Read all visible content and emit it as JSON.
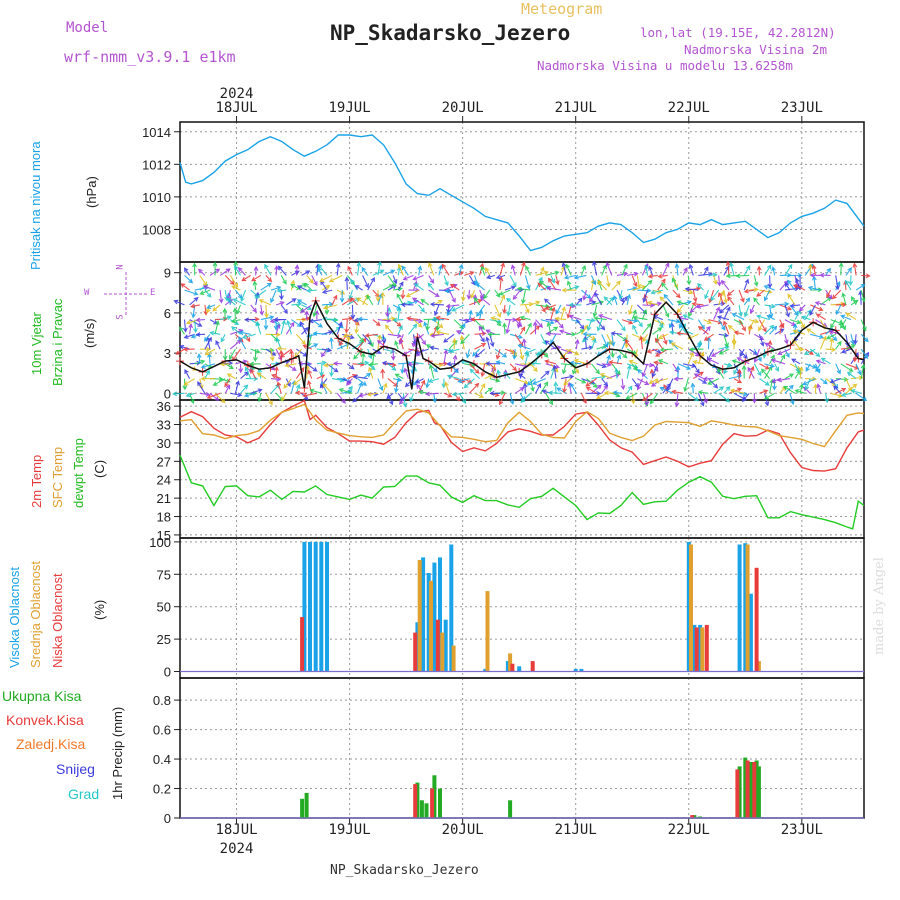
{
  "header": {
    "model_label": "Model",
    "model_name": "wrf-nmm_v3.9.1 e1km",
    "meteogram": "Meteogram",
    "station": "NP_Skadarsko_Jezero",
    "lonlat": "lon,lat (19.15E, 42.2812N)",
    "elev": "Nadmorska Visina 2m",
    "elev_model": "Nadmorska Visina u modelu 13.6258m",
    "footer": "NP_Skadarsko_Jezero",
    "watermark": "made by Angel"
  },
  "panels": {
    "pressure": {
      "ylabel1": "Pritisak na nivou mora",
      "unit": "(hPa)"
    },
    "wind": {
      "ylabel1": "10m Vjetar",
      "ylabel2": "Brzina i Pravac",
      "unit": "(m/s)",
      "dir_n": "N",
      "dir_s": "S",
      "dir_w": "W",
      "dir_e": "E"
    },
    "temp": {
      "ylabel1": "2m Temp",
      "ylabel2": "SFC Temp",
      "ylabel3": "dewpt Temp",
      "unit": "(C)"
    },
    "cloud": {
      "ylabel1": "Visoka Oblacnost",
      "ylabel2": "Srednja Oblacnost",
      "ylabel3": "Niska Oblacnost",
      "unit": "(%)"
    },
    "precip": {
      "unit": "1hr Precip (mm)",
      "legend": [
        "Ukupna Kisa",
        "Konvek.Kisa",
        "Zaledj.Kisa",
        "Snijeg",
        "Grad"
      ]
    }
  },
  "colors": {
    "pressure": "#1aa3e8",
    "temp2m": "#e83c3c",
    "sfc": "#e0a030",
    "dewpt": "#22cc22",
    "cloud_high": "#1aa3e8",
    "cloud_mid": "#e0a030",
    "cloud_low": "#e83c3c",
    "total": "#22aa22",
    "conv": "#e83c3c",
    "frz": "#f07a2a",
    "snow": "#3b3be0",
    "hail": "#22c7c7",
    "title": "#222222",
    "label_purple": "#b455d0",
    "meteogram": "#e8c060"
  },
  "chart_data": [
    {
      "type": "line",
      "panel": "pressure",
      "x_unit": "day of July 2024 (UTC)",
      "year": "2024",
      "day_labels": [
        "18JUL",
        "19JUL",
        "20JUL",
        "21JUL",
        "22JUL",
        "23JUL"
      ],
      "day_values": [
        18,
        19,
        20,
        21,
        22,
        23
      ],
      "xlim": [
        17.5,
        23.55
      ],
      "ylim": [
        1006,
        1014.6
      ],
      "yticks": [
        1008,
        1010,
        1012,
        1014
      ],
      "series": [
        {
          "key": "pressure",
          "x": [
            17.5,
            17.55,
            17.6,
            17.7,
            17.8,
            17.9,
            18.0,
            18.1,
            18.2,
            18.3,
            18.4,
            18.5,
            18.6,
            18.7,
            18.8,
            18.9,
            19.0,
            19.1,
            19.2,
            19.3,
            19.4,
            19.5,
            19.6,
            19.7,
            19.8,
            19.9,
            20.0,
            20.1,
            20.2,
            20.3,
            20.4,
            20.5,
            20.6,
            20.7,
            20.8,
            20.9,
            21.0,
            21.1,
            21.2,
            21.3,
            21.4,
            21.5,
            21.6,
            21.7,
            21.8,
            21.9,
            22.0,
            22.1,
            22.2,
            22.3,
            22.4,
            22.5,
            22.6,
            22.7,
            22.8,
            22.9,
            23.0,
            23.1,
            23.2,
            23.3,
            23.4,
            23.55
          ],
          "values": [
            1012.1,
            1010.9,
            1010.8,
            1011.0,
            1011.5,
            1012.2,
            1012.6,
            1012.9,
            1013.4,
            1013.7,
            1013.4,
            1012.9,
            1012.5,
            1012.8,
            1013.2,
            1013.8,
            1013.8,
            1013.7,
            1013.8,
            1013.2,
            1012.1,
            1010.8,
            1010.2,
            1010.1,
            1010.5,
            1010.1,
            1009.7,
            1009.3,
            1008.8,
            1008.6,
            1008.4,
            1007.6,
            1006.7,
            1006.9,
            1007.3,
            1007.6,
            1007.7,
            1007.8,
            1008.2,
            1008.4,
            1008.3,
            1007.8,
            1007.2,
            1007.4,
            1007.8,
            1008.0,
            1008.4,
            1008.3,
            1008.6,
            1008.3,
            1008.4,
            1008.5,
            1008.0,
            1007.5,
            1007.8,
            1008.4,
            1008.8,
            1009.0,
            1009.3,
            1009.8,
            1009.6,
            1008.2
          ]
        }
      ]
    },
    {
      "type": "line",
      "panel": "wind",
      "ylim": [
        -0.5,
        9.8
      ],
      "yticks": [
        0,
        3,
        6,
        9
      ],
      "series": [
        {
          "key": "wind_speed",
          "x": [
            17.5,
            17.6,
            17.7,
            17.8,
            17.9,
            18.0,
            18.1,
            18.2,
            18.3,
            18.4,
            18.5,
            18.55,
            18.6,
            18.65,
            18.7,
            18.8,
            18.9,
            19.0,
            19.1,
            19.2,
            19.3,
            19.4,
            19.5,
            19.55,
            19.6,
            19.65,
            19.7,
            19.8,
            19.9,
            20.0,
            20.1,
            20.2,
            20.3,
            20.4,
            20.5,
            20.6,
            20.7,
            20.8,
            20.9,
            21.0,
            21.1,
            21.2,
            21.3,
            21.4,
            21.5,
            21.6,
            21.7,
            21.8,
            21.9,
            22.0,
            22.1,
            22.2,
            22.3,
            22.4,
            22.5,
            22.6,
            22.7,
            22.8,
            22.9,
            23.0,
            23.1,
            23.2,
            23.3,
            23.4,
            23.5,
            23.55
          ],
          "values": [
            2.4,
            1.9,
            1.6,
            2.0,
            2.4,
            2.5,
            2.1,
            1.8,
            1.9,
            2.3,
            2.6,
            2.8,
            0.4,
            5.7,
            6.9,
            5.2,
            4.1,
            3.7,
            3.1,
            2.9,
            3.5,
            3.3,
            2.8,
            0.3,
            4.2,
            2.6,
            2.4,
            1.8,
            1.9,
            2.5,
            2.2,
            1.6,
            1.2,
            1.4,
            1.6,
            2.2,
            2.9,
            3.8,
            2.6,
            1.9,
            2.2,
            2.8,
            3.3,
            3.2,
            3.0,
            2.2,
            5.9,
            6.8,
            5.9,
            4.3,
            2.8,
            2.1,
            1.8,
            1.9,
            2.4,
            2.7,
            3.1,
            3.3,
            3.6,
            4.7,
            5.3,
            4.9,
            4.7,
            3.8,
            2.6,
            2.5
          ]
        }
      ]
    },
    {
      "type": "line",
      "panel": "temp",
      "ylim": [
        14.5,
        37
      ],
      "yticks": [
        15,
        18,
        21,
        24,
        27,
        30,
        33,
        36
      ],
      "series": [
        {
          "key": "temp2m",
          "x": [
            17.5,
            17.6,
            17.7,
            17.8,
            17.9,
            18.0,
            18.1,
            18.2,
            18.3,
            18.4,
            18.5,
            18.6,
            18.65,
            18.7,
            18.8,
            18.9,
            19.0,
            19.1,
            19.2,
            19.3,
            19.4,
            19.5,
            19.6,
            19.7,
            19.75,
            19.8,
            19.9,
            20.0,
            20.1,
            20.2,
            20.3,
            20.4,
            20.5,
            20.6,
            20.7,
            20.8,
            20.9,
            21.0,
            21.1,
            21.2,
            21.3,
            21.4,
            21.5,
            21.6,
            21.7,
            21.8,
            21.9,
            22.0,
            22.1,
            22.2,
            22.3,
            22.4,
            22.5,
            22.6,
            22.7,
            22.8,
            22.9,
            23.0,
            23.1,
            23.2,
            23.3,
            23.4,
            23.5,
            23.55
          ],
          "values": [
            34.2,
            35.1,
            34.3,
            32.4,
            31.3,
            31.0,
            30.0,
            30.8,
            33.0,
            35.0,
            36.0,
            36.9,
            33.8,
            34.5,
            32.5,
            31.5,
            30.3,
            30.3,
            30.2,
            29.8,
            30.9,
            33.3,
            35.0,
            35.3,
            33.3,
            32.9,
            30.1,
            28.6,
            29.2,
            28.7,
            29.9,
            31.8,
            32.3,
            31.9,
            31.3,
            31.3,
            32.7,
            34.7,
            35.0,
            32.9,
            30.5,
            29.2,
            28.5,
            26.5,
            27.1,
            27.7,
            27.0,
            26.1,
            26.7,
            27.1,
            29.8,
            31.5,
            31.1,
            31.2,
            32.1,
            31.5,
            28.4,
            26.0,
            25.5,
            25.4,
            25.8,
            29.2,
            31.8,
            32.1
          ]
        },
        {
          "key": "sfc",
          "x": [
            17.5,
            17.6,
            17.7,
            17.8,
            17.9,
            18.0,
            18.1,
            18.2,
            18.3,
            18.4,
            18.5,
            18.6,
            18.7,
            18.8,
            18.9,
            19.0,
            19.1,
            19.2,
            19.3,
            19.4,
            19.5,
            19.6,
            19.7,
            19.8,
            19.9,
            20.0,
            20.1,
            20.2,
            20.3,
            20.4,
            20.5,
            20.6,
            20.7,
            20.8,
            20.9,
            21.0,
            21.1,
            21.2,
            21.3,
            21.4,
            21.5,
            21.6,
            21.7,
            21.8,
            21.9,
            22.0,
            22.1,
            22.2,
            22.3,
            22.4,
            22.5,
            22.6,
            22.7,
            22.8,
            22.9,
            23.0,
            23.1,
            23.2,
            23.3,
            23.4,
            23.5,
            23.55
          ],
          "values": [
            33.6,
            33.8,
            31.5,
            31.3,
            30.7,
            31.2,
            31.4,
            32.0,
            33.7,
            35.0,
            35.6,
            36.3,
            33.7,
            32.1,
            31.6,
            31.2,
            31.0,
            30.9,
            31.3,
            33.3,
            35.2,
            35.5,
            34.9,
            32.8,
            31.0,
            30.9,
            30.6,
            30.2,
            30.4,
            33.3,
            35.0,
            33.5,
            31.4,
            30.9,
            30.8,
            33.5,
            35.1,
            34.0,
            31.6,
            30.9,
            30.4,
            31.1,
            32.9,
            33.5,
            33.4,
            33.3,
            32.7,
            33.6,
            33.3,
            32.9,
            32.7,
            32.6,
            32.0,
            31.2,
            30.9,
            30.6,
            29.9,
            29.4,
            32.0,
            34.5,
            34.9,
            34.8
          ]
        },
        {
          "key": "dewpt",
          "x": [
            17.5,
            17.6,
            17.7,
            17.8,
            17.9,
            18.0,
            18.1,
            18.2,
            18.3,
            18.4,
            18.5,
            18.6,
            18.7,
            18.8,
            18.9,
            19.0,
            19.1,
            19.2,
            19.3,
            19.4,
            19.5,
            19.6,
            19.7,
            19.8,
            19.9,
            20.0,
            20.1,
            20.2,
            20.3,
            20.4,
            20.5,
            20.6,
            20.7,
            20.8,
            20.9,
            21.0,
            21.1,
            21.2,
            21.3,
            21.4,
            21.5,
            21.6,
            21.7,
            21.8,
            21.9,
            22.0,
            22.1,
            22.2,
            22.3,
            22.4,
            22.5,
            22.6,
            22.7,
            22.8,
            22.9,
            23.0,
            23.1,
            23.2,
            23.3,
            23.4,
            23.45,
            23.5,
            23.55
          ],
          "values": [
            28.0,
            23.5,
            23.0,
            19.8,
            22.9,
            23.0,
            21.4,
            21.2,
            22.3,
            20.8,
            22.1,
            22.0,
            23.0,
            21.6,
            21.2,
            20.8,
            21.5,
            21.0,
            22.8,
            22.9,
            24.6,
            24.6,
            23.5,
            23.1,
            21.2,
            20.3,
            21.4,
            20.6,
            20.6,
            19.9,
            19.5,
            20.9,
            21.3,
            22.6,
            21.2,
            19.8,
            17.5,
            18.6,
            18.5,
            19.8,
            21.9,
            20.0,
            20.4,
            20.5,
            22.3,
            23.6,
            24.5,
            23.6,
            21.3,
            20.9,
            21.3,
            21.4,
            17.8,
            17.8,
            18.8,
            18.3,
            17.9,
            17.5,
            17.0,
            16.3,
            16.0,
            20.5,
            19.8
          ]
        }
      ]
    },
    {
      "type": "bar",
      "panel": "cloud",
      "ylim": [
        -5,
        103
      ],
      "yticks": [
        0,
        25,
        50,
        75,
        100
      ],
      "series": [
        {
          "key": "cloud_high",
          "x": [
            18.6,
            18.65,
            18.7,
            18.75,
            18.8,
            19.6,
            19.65,
            19.7,
            19.75,
            19.8,
            19.85,
            19.9,
            20.2,
            20.4,
            20.5,
            21.0,
            21.05,
            22.0,
            22.05,
            22.1,
            22.45,
            22.5,
            22.55
          ],
          "values": [
            100,
            100,
            100,
            100,
            100,
            38,
            88,
            76,
            84,
            88,
            40,
            98,
            2,
            8,
            4,
            2,
            2,
            100,
            36,
            36,
            98,
            99,
            60
          ]
        },
        {
          "key": "cloud_mid",
          "x": [
            18.62,
            19.62,
            19.72,
            19.82,
            19.92,
            20.22,
            20.42,
            22.02,
            22.12,
            22.52,
            22.62
          ],
          "values": [
            0,
            86,
            70,
            30,
            20,
            62,
            14,
            98,
            34,
            98,
            8
          ]
        },
        {
          "key": "cloud_low",
          "x": [
            18.58,
            19.58,
            19.78,
            20.44,
            20.62,
            22.07,
            22.16,
            22.6
          ],
          "values": [
            42,
            30,
            40,
            6,
            8,
            34,
            36,
            80
          ]
        }
      ]
    },
    {
      "type": "bar",
      "panel": "precip",
      "ylim": [
        0,
        0.95
      ],
      "yticks": [
        0,
        0.2,
        0.4,
        0.6,
        0.8
      ],
      "series": [
        {
          "key": "total",
          "x": [
            18.58,
            18.62,
            19.6,
            19.64,
            19.68,
            19.75,
            19.8,
            20.42,
            22.05,
            22.1,
            22.45,
            22.5,
            22.55,
            22.6,
            22.62
          ],
          "values": [
            0.13,
            0.17,
            0.24,
            0.12,
            0.1,
            0.29,
            0.2,
            0.12,
            0.02,
            0.01,
            0.35,
            0.41,
            0.38,
            0.39,
            0.35
          ]
        },
        {
          "key": "conv",
          "x": [
            18.56,
            19.58,
            19.73,
            22.03,
            22.43,
            22.52,
            22.58
          ],
          "values": [
            0.0,
            0.23,
            0.2,
            0.02,
            0.33,
            0.39,
            0.38
          ]
        }
      ]
    }
  ]
}
